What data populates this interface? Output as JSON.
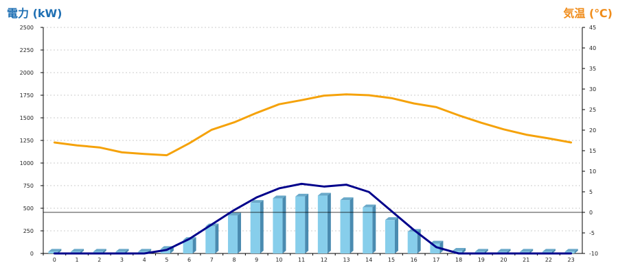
{
  "chart_data": {
    "type": "bar+line",
    "title_left": "電力 (kW)",
    "title_right": "気温 (℃)",
    "categories": [
      "0",
      "1",
      "2",
      "3",
      "4",
      "5",
      "6",
      "7",
      "8",
      "9",
      "10",
      "11",
      "12",
      "13",
      "14",
      "15",
      "16",
      "17",
      "18",
      "19",
      "20",
      "21",
      "22",
      "23"
    ],
    "left_axis": {
      "min": 0,
      "max": 2500,
      "ticks": [
        0,
        250,
        500,
        750,
        1000,
        1250,
        1500,
        1750,
        2000,
        2250,
        2500
      ]
    },
    "right_axis": {
      "min": -10,
      "max": 45,
      "ticks": [
        -10,
        -5,
        0,
        5,
        10,
        15,
        20,
        25,
        30,
        35,
        40,
        45
      ]
    },
    "series": [
      {
        "kind": "bar",
        "axis": "left",
        "color": "#87ceeb",
        "values": [
          20,
          20,
          20,
          20,
          20,
          50,
          150,
          300,
          420,
          560,
          610,
          630,
          640,
          590,
          510,
          370,
          240,
          110,
          30,
          20,
          20,
          20,
          20,
          20
        ]
      },
      {
        "kind": "line",
        "axis": "left",
        "color": "#00008b",
        "values": [
          0,
          0,
          0,
          0,
          0,
          40,
          160,
          320,
          480,
          620,
          720,
          770,
          740,
          760,
          680,
          470,
          260,
          70,
          0,
          0,
          0,
          0,
          0,
          0
        ]
      },
      {
        "kind": "line",
        "axis": "right",
        "color": "#f5a20a",
        "values": [
          17,
          16.3,
          15.8,
          14.6,
          14.2,
          13.9,
          16.8,
          20.1,
          21.9,
          24.2,
          26.3,
          27.3,
          28.4,
          28.7,
          28.5,
          27.8,
          26.5,
          25.6,
          23.6,
          21.8,
          20.2,
          18.9,
          18,
          17
        ]
      }
    ],
    "zero_line_right": 0,
    "grid": true
  }
}
